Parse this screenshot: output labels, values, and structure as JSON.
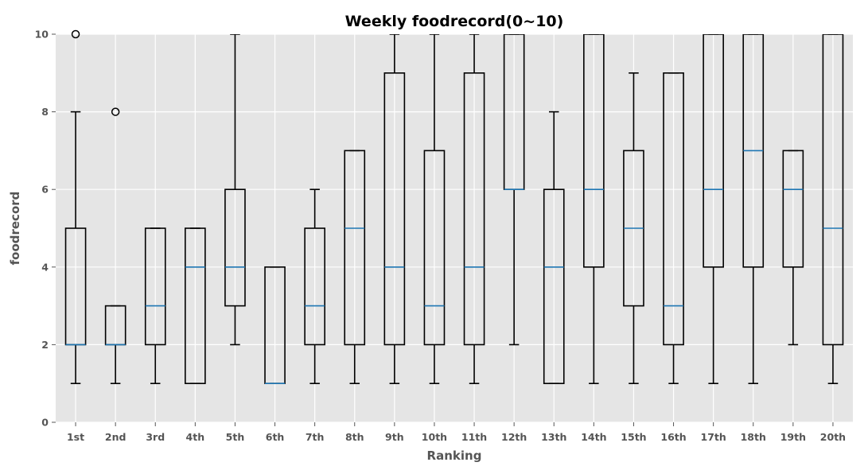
{
  "chart_data": {
    "type": "box",
    "title": "Weekly foodrecord(0~10)",
    "xlabel": "Ranking",
    "ylabel": "foodrecord",
    "ylim": [
      0,
      10
    ],
    "yticks": [
      0,
      2,
      4,
      6,
      8,
      10
    ],
    "grid": true,
    "colors": {
      "background": "#e5e5e5",
      "grid": "#ffffff",
      "box": "#000000",
      "median": "#1f77b4"
    },
    "categories": [
      "1st",
      "2nd",
      "3rd",
      "4th",
      "5th",
      "6th",
      "7th",
      "8th",
      "9th",
      "10th",
      "11th",
      "12th",
      "13th",
      "14th",
      "15th",
      "16th",
      "17th",
      "18th",
      "19th",
      "20th"
    ],
    "boxes": [
      {
        "whislo": 1,
        "q1": 2,
        "med": 2,
        "q3": 5,
        "whishi": 8,
        "fliers": [
          10
        ]
      },
      {
        "whislo": 1,
        "q1": 2,
        "med": 2,
        "q3": 3,
        "whishi": 3,
        "fliers": [
          8
        ]
      },
      {
        "whislo": 1,
        "q1": 2,
        "med": 3,
        "q3": 5,
        "whishi": 5,
        "fliers": []
      },
      {
        "whislo": 1,
        "q1": 1,
        "med": 4,
        "q3": 5,
        "whishi": 5,
        "fliers": []
      },
      {
        "whislo": 2,
        "q1": 3,
        "med": 4,
        "q3": 6,
        "whishi": 10,
        "fliers": []
      },
      {
        "whislo": 1,
        "q1": 1,
        "med": 1,
        "q3": 4,
        "whishi": 4,
        "fliers": []
      },
      {
        "whislo": 1,
        "q1": 2,
        "med": 3,
        "q3": 5,
        "whishi": 6,
        "fliers": []
      },
      {
        "whislo": 1,
        "q1": 2,
        "med": 5,
        "q3": 7,
        "whishi": 7,
        "fliers": []
      },
      {
        "whislo": 1,
        "q1": 2,
        "med": 4,
        "q3": 9,
        "whishi": 10,
        "fliers": []
      },
      {
        "whislo": 1,
        "q1": 2,
        "med": 3,
        "q3": 7,
        "whishi": 10,
        "fliers": []
      },
      {
        "whislo": 1,
        "q1": 2,
        "med": 4,
        "q3": 9,
        "whishi": 10,
        "fliers": []
      },
      {
        "whislo": 2,
        "q1": 6,
        "med": 6,
        "q3": 10,
        "whishi": 10,
        "fliers": []
      },
      {
        "whislo": 1,
        "q1": 1,
        "med": 4,
        "q3": 6,
        "whishi": 8,
        "fliers": []
      },
      {
        "whislo": 1,
        "q1": 4,
        "med": 6,
        "q3": 10,
        "whishi": 10,
        "fliers": []
      },
      {
        "whislo": 1,
        "q1": 3,
        "med": 5,
        "q3": 7,
        "whishi": 9,
        "fliers": []
      },
      {
        "whislo": 1,
        "q1": 2,
        "med": 3,
        "q3": 9,
        "whishi": 9,
        "fliers": []
      },
      {
        "whislo": 1,
        "q1": 4,
        "med": 6,
        "q3": 10,
        "whishi": 10,
        "fliers": []
      },
      {
        "whislo": 1,
        "q1": 4,
        "med": 7,
        "q3": 10,
        "whishi": 10,
        "fliers": []
      },
      {
        "whislo": 2,
        "q1": 4,
        "med": 6,
        "q3": 7,
        "whishi": 7,
        "fliers": []
      },
      {
        "whislo": 1,
        "q1": 2,
        "med": 5,
        "q3": 10,
        "whishi": 10,
        "fliers": []
      }
    ]
  }
}
